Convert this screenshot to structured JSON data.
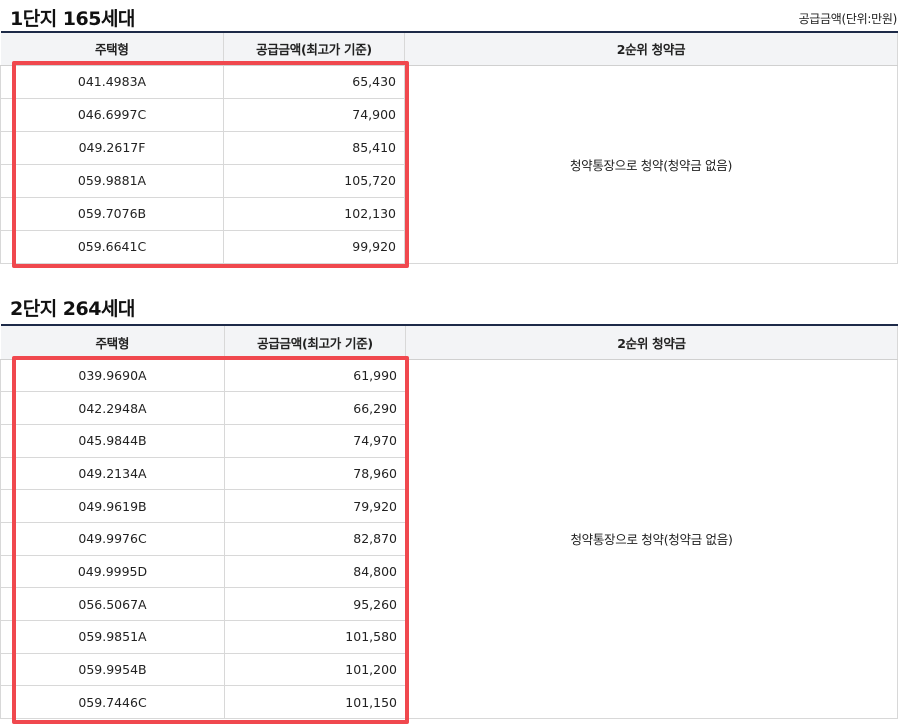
{
  "unit_note": "공급금액(단위:만원)",
  "complex1": {
    "title": "1단지 165세대",
    "headers": {
      "type": "주택형",
      "price": "공급금액(최고가 기준)",
      "second": "2순위 청약금"
    },
    "rows": [
      {
        "type": "041.4983A",
        "price": "65,430"
      },
      {
        "type": "046.6997C",
        "price": "74,900"
      },
      {
        "type": "049.2617F",
        "price": "85,410"
      },
      {
        "type": "059.9881A",
        "price": "105,720"
      },
      {
        "type": "059.7076B",
        "price": "102,130"
      },
      {
        "type": "059.6641C",
        "price": "99,920"
      }
    ],
    "second_note": "청약통장으로 청약(청약금 없음)"
  },
  "complex2": {
    "title": "2단지 264세대",
    "headers": {
      "type": "주택형",
      "price": "공급금액(최고가 기준)",
      "second": "2순위 청약금"
    },
    "rows": [
      {
        "type": "039.9690A",
        "price": "61,990"
      },
      {
        "type": "042.2948A",
        "price": "66,290"
      },
      {
        "type": "045.9844B",
        "price": "74,970"
      },
      {
        "type": "049.2134A",
        "price": "78,960"
      },
      {
        "type": "049.9619B",
        "price": "79,920"
      },
      {
        "type": "049.9976C",
        "price": "82,870"
      },
      {
        "type": "049.9995D",
        "price": "84,800"
      },
      {
        "type": "056.5067A",
        "price": "95,260"
      },
      {
        "type": "059.9851A",
        "price": "101,580"
      },
      {
        "type": "059.9954B",
        "price": "101,200"
      },
      {
        "type": "059.7446C",
        "price": "101,150"
      }
    ],
    "second_note": "청약통장으로 청약(청약금 없음)"
  },
  "colors": {
    "header_rule": "#1d2a48",
    "highlight": "#f0484e",
    "header_bg": "#f3f4f6"
  }
}
